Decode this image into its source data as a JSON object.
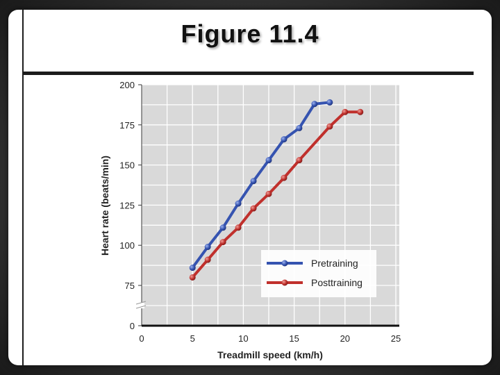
{
  "slide": {
    "title": "Figure 11.4"
  },
  "chart_data": {
    "type": "line",
    "xlabel": "Treadmill speed (km/h)",
    "ylabel": "Heart rate (beats/min)",
    "xlim": [
      0,
      25
    ],
    "ylim": [
      0,
      200
    ],
    "xticks": [
      0,
      5,
      10,
      15,
      20,
      25
    ],
    "yticks": [
      0,
      75,
      100,
      125,
      150,
      175,
      200
    ],
    "axis_break": true,
    "grid": true,
    "legend_position": "bottom-right",
    "series": [
      {
        "name": "Pretraining",
        "color": "#3553b0",
        "points": [
          [
            5,
            86
          ],
          [
            6.5,
            99
          ],
          [
            8,
            111
          ],
          [
            9.5,
            126
          ],
          [
            11,
            140
          ],
          [
            12.5,
            153
          ],
          [
            14,
            166
          ],
          [
            15.5,
            173
          ],
          [
            17,
            188
          ],
          [
            18.5,
            189
          ]
        ]
      },
      {
        "name": "Posttraining",
        "color": "#c0302c",
        "points": [
          [
            5,
            80
          ],
          [
            6.5,
            91
          ],
          [
            8,
            102
          ],
          [
            9.5,
            111
          ],
          [
            11,
            123
          ],
          [
            12.5,
            132
          ],
          [
            14,
            142
          ],
          [
            15.5,
            153
          ],
          [
            18.5,
            174
          ],
          [
            20,
            183
          ],
          [
            21.5,
            183
          ]
        ]
      }
    ]
  }
}
